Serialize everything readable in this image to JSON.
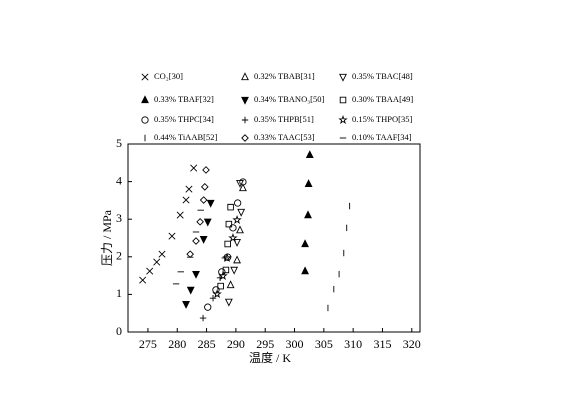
{
  "chart_data": {
    "type": "scatter",
    "x_label": "温度 / K",
    "y_label": "压力 / MPa",
    "xlim": [
      271.6,
      321.4
    ],
    "ylim": [
      0,
      5
    ],
    "xticks": [
      275,
      280,
      285,
      290,
      295,
      300,
      305,
      310,
      315,
      320
    ],
    "yticks": [
      0,
      1,
      2,
      3,
      4,
      5
    ],
    "color": "#000000",
    "series": [
      {
        "name": "CO₂[30]",
        "marker": "x",
        "x": [
          274.1,
          275.3,
          276.5,
          277.4,
          279.1,
          280.5,
          281.5,
          282.0,
          282.8
        ],
        "values": [
          1.38,
          1.62,
          1.86,
          2.07,
          2.55,
          3.11,
          3.51,
          3.8,
          4.36
        ]
      },
      {
        "name": "0.32% TBAB[31]",
        "marker": "triangle-up-open",
        "x": [
          289.1,
          290.2,
          290.7,
          291.2
        ],
        "values": [
          1.25,
          1.91,
          2.71,
          3.83
        ]
      },
      {
        "name": "0.35% TBAC[48]",
        "marker": "triangle-down-open",
        "x": [
          288.8,
          289.7,
          290.2,
          290.9,
          290.7
        ],
        "values": [
          0.8,
          1.65,
          2.39,
          3.19,
          3.96
        ]
      },
      {
        "name": "0.33% TBAF[32]",
        "marker": "triangle-up",
        "x": [
          301.8,
          301.8,
          302.3,
          302.4,
          302.6
        ],
        "values": [
          1.62,
          2.34,
          3.11,
          3.94,
          4.71
        ]
      },
      {
        "name": "0.34% TBANO₃[50]",
        "marker": "triangle-down",
        "x": [
          281.5,
          282.3,
          283.2,
          284.5,
          285.2,
          285.7
        ],
        "values": [
          0.74,
          1.12,
          1.54,
          2.47,
          2.93,
          3.43
        ]
      },
      {
        "name": "0.30% TBAA[49]",
        "marker": "square-open",
        "x": [
          287.4,
          288.3,
          288.6,
          288.8,
          289.1
        ],
        "values": [
          1.22,
          1.65,
          2.34,
          2.87,
          3.32
        ]
      },
      {
        "name": "0.35% THPC[34]",
        "marker": "circle-open",
        "x": [
          285.2,
          286.6,
          287.6,
          288.6,
          289.5,
          290.3,
          291.2
        ],
        "values": [
          0.66,
          1.12,
          1.6,
          1.99,
          2.77,
          3.43,
          3.99
        ]
      },
      {
        "name": "0.35% THPB[51]",
        "marker": "plus",
        "x": [
          284.4,
          286.1,
          287.3,
          288.1
        ],
        "values": [
          0.37,
          0.9,
          1.44,
          1.97
        ]
      },
      {
        "name": "0.15% THPO[35]",
        "marker": "star-open",
        "x": [
          286.8,
          287.8,
          288.5,
          289.5,
          290.2
        ],
        "values": [
          1.01,
          1.49,
          1.97,
          2.5,
          2.98
        ]
      },
      {
        "name": "0.44% TiAAB[52]",
        "marker": "vbar",
        "x": [
          305.7,
          306.7,
          307.6,
          308.4,
          308.9,
          309.4
        ],
        "values": [
          0.64,
          1.14,
          1.54,
          2.1,
          2.77,
          3.35
        ]
      },
      {
        "name": "0.33% TAAC[53]",
        "marker": "diamond-open",
        "x": [
          282.2,
          283.2,
          283.9,
          284.5,
          284.7,
          284.9
        ],
        "values": [
          2.07,
          2.42,
          2.93,
          3.51,
          3.86,
          4.31
        ]
      },
      {
        "name": "0.10% TAAF[34]",
        "marker": "hbar",
        "x": [
          279.8,
          280.6,
          282.2,
          283.2,
          284.0
        ],
        "values": [
          1.28,
          1.6,
          1.99,
          2.66,
          3.24
        ]
      }
    ]
  }
}
